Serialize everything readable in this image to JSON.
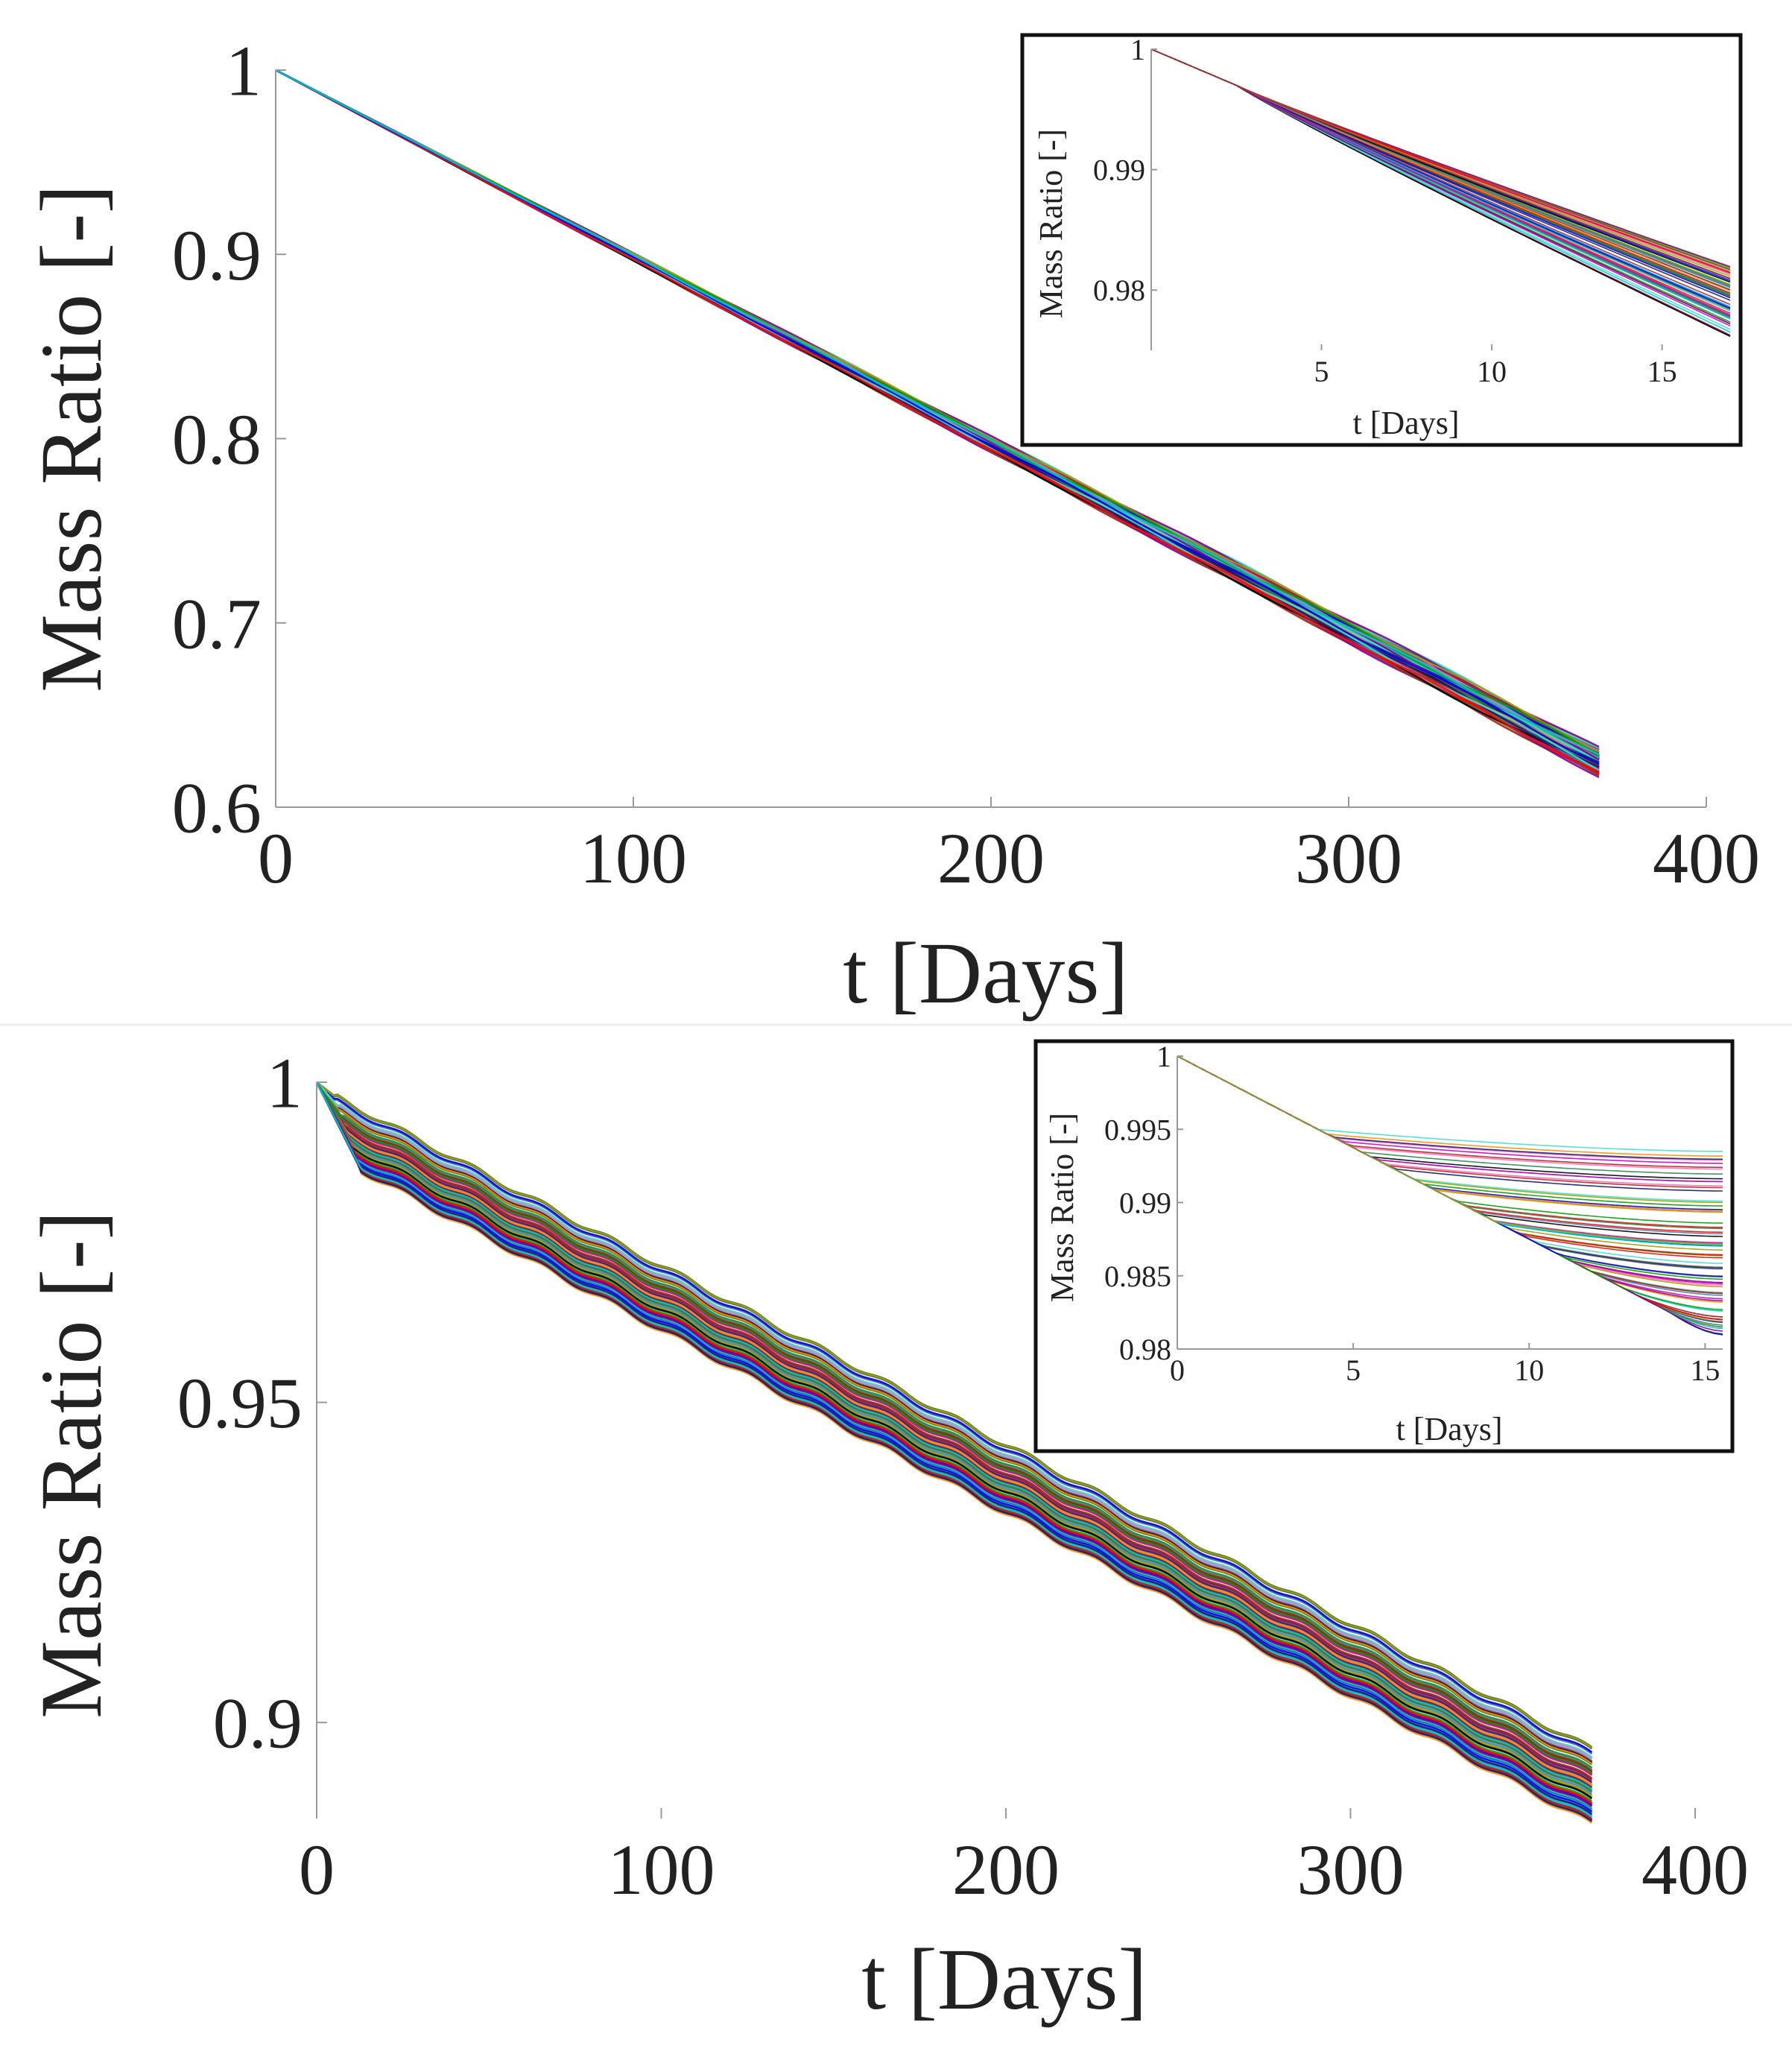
{
  "chart_data": [
    {
      "id": "top-main",
      "type": "line",
      "xlabel": "t [Days]",
      "ylabel": "Mass Ratio [-]",
      "xlim": [
        0,
        400
      ],
      "ylim": [
        0.6,
        1.0
      ],
      "xticks": [
        0,
        100,
        200,
        300,
        400
      ],
      "yticks": [
        0.6,
        0.7,
        0.8,
        0.9,
        1.0
      ],
      "xtick_labels": [
        "0",
        "100",
        "200",
        "300",
        "400"
      ],
      "ytick_labels": [
        "0.6",
        "0.7",
        "0.8",
        "0.9",
        "1"
      ],
      "series_count": 100,
      "x_end": 370,
      "y_start": 1.0,
      "y_end_range": [
        0.617,
        0.632
      ],
      "description": "Many simulated runs decreasing nearly linearly"
    },
    {
      "id": "top-inset",
      "type": "line",
      "xlabel": "t [Days]",
      "ylabel": "Mass Ratio [-]",
      "xlim": [
        0,
        17
      ],
      "ylim": [
        0.975,
        1.0
      ],
      "xticks": [
        5,
        10,
        15
      ],
      "yticks": [
        0.98,
        0.99,
        1.0
      ],
      "xtick_labels": [
        "5",
        "10",
        "15"
      ],
      "ytick_labels": [
        "0.98",
        "0.99",
        "1"
      ],
      "series_count": 60,
      "y_end_range": [
        0.976,
        0.982
      ]
    },
    {
      "id": "bottom-main",
      "type": "line",
      "xlabel": "t [Days]",
      "ylabel": "Mass Ratio [-]",
      "xlim": [
        0,
        400
      ],
      "ylim": [
        0.885,
        1.0
      ],
      "xticks": [
        0,
        100,
        200,
        300,
        400
      ],
      "yticks": [
        0.9,
        0.95,
        1.0
      ],
      "xtick_labels": [
        "0",
        "100",
        "200",
        "300",
        "400"
      ],
      "ytick_labels": [
        "0.9",
        "0.95",
        "1"
      ],
      "series_count": 100,
      "x_end": 370,
      "y_end_range": [
        0.884,
        0.896
      ]
    },
    {
      "id": "bottom-inset",
      "type": "line",
      "xlabel": "t [Days]",
      "ylabel": "Mass Ratio [-]",
      "xlim": [
        0,
        15.5
      ],
      "ylim": [
        0.98,
        1.0
      ],
      "xticks": [
        0,
        5,
        10,
        15
      ],
      "yticks": [
        0.98,
        0.985,
        0.99,
        0.995,
        1.0
      ],
      "xtick_labels": [
        "0",
        "5",
        "10",
        "15"
      ],
      "ytick_labels": [
        "0.98",
        "0.985",
        "0.99",
        "0.995",
        "1"
      ],
      "series_count": 70,
      "y_end_range": [
        0.9808,
        0.994
      ]
    }
  ],
  "palette": [
    "#00a000",
    "#ff0000",
    "#0000ff",
    "#00c8c8",
    "#c800c8",
    "#a0a000",
    "#000000",
    "#ff8c00",
    "#4682b4",
    "#8b008b",
    "#2e8b57",
    "#b22222",
    "#191970",
    "#ff69b4",
    "#556b2f",
    "#40e0d0"
  ]
}
